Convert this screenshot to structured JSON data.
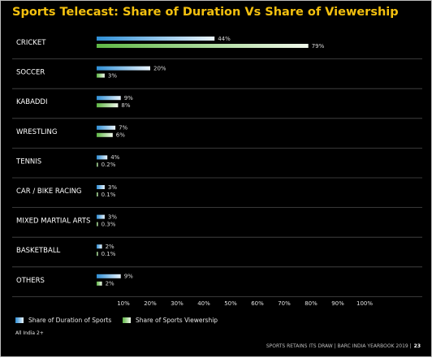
{
  "title": "Sports Telecast: Share of Duration Vs Share of Viewership",
  "footnote": "All India 2+",
  "page_footer": {
    "text": "SPORTS RETAINS ITS DRAW | BARC INDIA YEARBOOK 2019 |",
    "page": "23"
  },
  "colors": {
    "title": "#f3c00f",
    "duration_start": "#2f8fd6",
    "duration_end": "#eaf4fb",
    "viewership_start": "#5fb845",
    "viewership_end": "#f1f8ec",
    "separator": "#4a4a4a",
    "background": "#000000"
  },
  "chart_data": {
    "type": "bar",
    "orientation": "horizontal",
    "categories": [
      "CRICKET",
      "SOCCER",
      "KABADDI",
      "WRESTLING",
      "TENNIS",
      "CAR / BIKE RACING",
      "MIXED MARTIAL ARTS",
      "BASKETBALL",
      "OTHERS"
    ],
    "series": [
      {
        "name": "Share of Duration of Sports",
        "values": [
          44,
          20,
          9,
          7,
          4,
          3,
          3,
          2,
          9
        ],
        "labels": [
          "44%",
          "20%",
          "9%",
          "7%",
          "4%",
          "3%",
          "3%",
          "2%",
          "9%"
        ]
      },
      {
        "name": "Share of Sports Viewership",
        "values": [
          79,
          3,
          8,
          6,
          0.2,
          0.1,
          0.3,
          0.1,
          2
        ],
        "labels": [
          "79%",
          "3%",
          "8%",
          "6%",
          "0.2%",
          "0.1%",
          "0.3%",
          "0.1%",
          "2%"
        ]
      }
    ],
    "xlim": [
      0,
      100
    ],
    "xticks": [
      "10%",
      "20%",
      "30%",
      "40%",
      "50%",
      "60%",
      "70%",
      "80%",
      "90%",
      "100%"
    ],
    "legend_position": "bottom-left",
    "grid": false
  }
}
